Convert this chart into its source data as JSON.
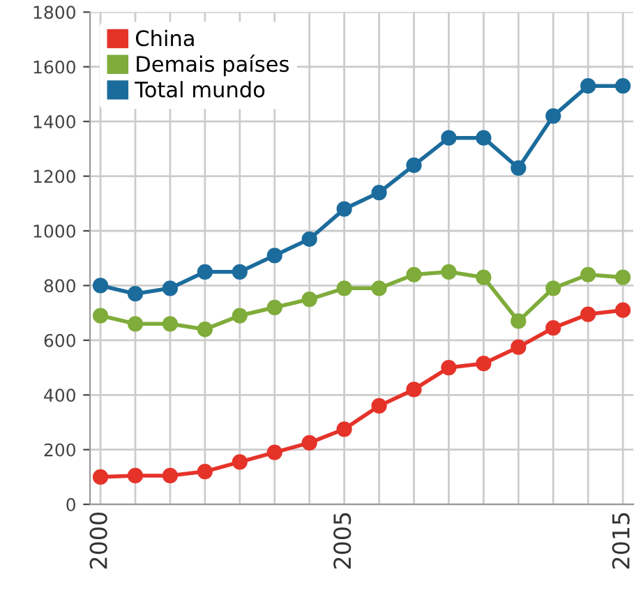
{
  "chart_data": {
    "type": "line",
    "categories": [
      "2000",
      null,
      null,
      null,
      null,
      null,
      null,
      "2005",
      null,
      null,
      null,
      null,
      null,
      null,
      null,
      "2015"
    ],
    "series": [
      {
        "name": "China",
        "color": "#e5332a",
        "values": [
          100,
          105,
          105,
          120,
          155,
          190,
          225,
          275,
          360,
          420,
          500,
          515,
          575,
          645,
          695,
          710
        ]
      },
      {
        "name": "Demais países",
        "color": "#7fac3a",
        "values": [
          690,
          660,
          660,
          640,
          690,
          720,
          750,
          790,
          790,
          840,
          850,
          830,
          670,
          790,
          840,
          830
        ]
      },
      {
        "name": "Total mundo",
        "color": "#1b6c9c",
        "values": [
          800,
          770,
          790,
          850,
          850,
          910,
          970,
          1080,
          1140,
          1240,
          1340,
          1340,
          1230,
          1420,
          1530,
          1530
        ]
      }
    ],
    "ylim": [
      0,
      1800
    ],
    "yticks": [
      0,
      200,
      400,
      600,
      800,
      1000,
      1200,
      1400,
      1600,
      1800
    ],
    "grid": true,
    "legend": "top left",
    "marker": "circle",
    "line_style": "solid"
  }
}
